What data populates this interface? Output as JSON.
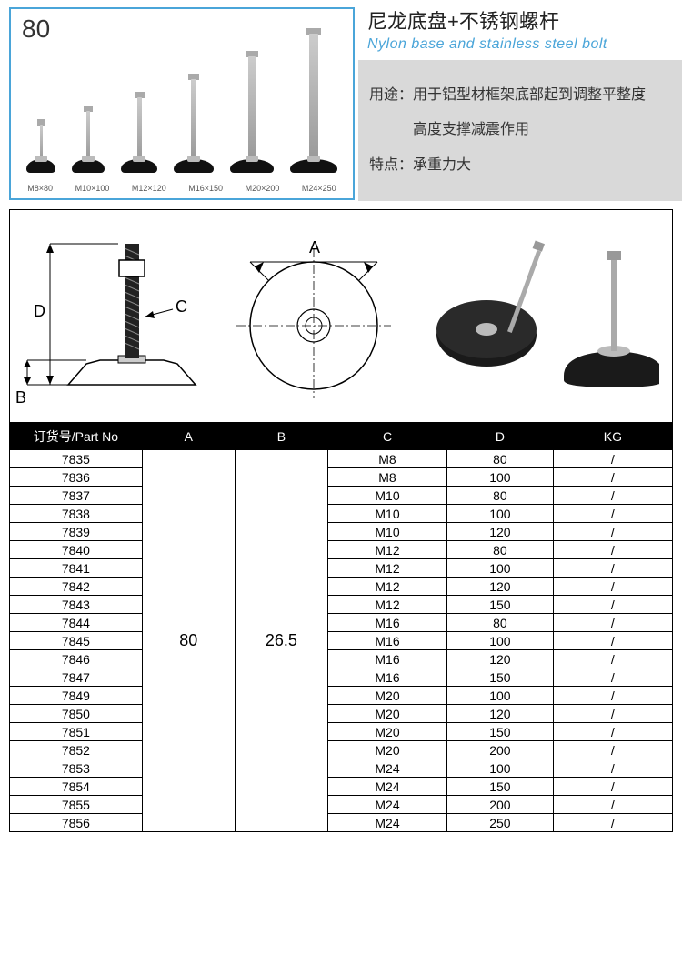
{
  "header": {
    "label80": "80",
    "title_cn": "尼龙底盘+不锈钢螺杆",
    "title_en": "Nylon base and stainless steel bolt",
    "usage_label": "用途：",
    "usage_text1": "用于铝型材框架底部起到调整平整度",
    "usage_text2": "高度支撑减震作用",
    "feature_label": "特点：",
    "feature_text": "承重力大",
    "foot_sizes": [
      "M8×80",
      "M10×100",
      "M12×120",
      "M16×150",
      "M20×200",
      "M24×250"
    ],
    "bolt_heights": [
      40,
      55,
      70,
      90,
      115,
      140
    ],
    "bolt_widths": [
      3,
      4,
      5,
      6,
      8,
      10
    ],
    "base_widths": [
      32,
      36,
      40,
      44,
      48,
      52
    ]
  },
  "diagram": {
    "label_A": "A",
    "label_B": "B",
    "label_C": "C",
    "label_D": "D"
  },
  "table": {
    "headers": [
      "订货号/Part No",
      "A",
      "B",
      "C",
      "D",
      "KG"
    ],
    "col_widths": [
      "20%",
      "14%",
      "14%",
      "18%",
      "16%",
      "18%"
    ],
    "merged_A": "80",
    "merged_B": "26.5",
    "rows": [
      {
        "pn": "7835",
        "c": "M8",
        "d": "80",
        "kg": "/"
      },
      {
        "pn": "7836",
        "c": "M8",
        "d": "100",
        "kg": "/"
      },
      {
        "pn": "7837",
        "c": "M10",
        "d": "80",
        "kg": "/"
      },
      {
        "pn": "7838",
        "c": "M10",
        "d": "100",
        "kg": "/"
      },
      {
        "pn": "7839",
        "c": "M10",
        "d": "120",
        "kg": "/"
      },
      {
        "pn": "7840",
        "c": "M12",
        "d": "80",
        "kg": "/"
      },
      {
        "pn": "7841",
        "c": "M12",
        "d": "100",
        "kg": "/"
      },
      {
        "pn": "7842",
        "c": "M12",
        "d": "120",
        "kg": "/"
      },
      {
        "pn": "7843",
        "c": "M12",
        "d": "150",
        "kg": "/"
      },
      {
        "pn": "7844",
        "c": "M16",
        "d": "80",
        "kg": "/"
      },
      {
        "pn": "7845",
        "c": "M16",
        "d": "100",
        "kg": "/"
      },
      {
        "pn": "7846",
        "c": "M16",
        "d": "120",
        "kg": "/"
      },
      {
        "pn": "7847",
        "c": "M16",
        "d": "150",
        "kg": "/"
      },
      {
        "pn": "7849",
        "c": "M20",
        "d": "100",
        "kg": "/"
      },
      {
        "pn": "7850",
        "c": "M20",
        "d": "120",
        "kg": "/"
      },
      {
        "pn": "7851",
        "c": "M20",
        "d": "150",
        "kg": "/"
      },
      {
        "pn": "7852",
        "c": "M20",
        "d": "200",
        "kg": "/"
      },
      {
        "pn": "7853",
        "c": "M24",
        "d": "100",
        "kg": "/"
      },
      {
        "pn": "7854",
        "c": "M24",
        "d": "150",
        "kg": "/"
      },
      {
        "pn": "7855",
        "c": "M24",
        "d": "200",
        "kg": "/"
      },
      {
        "pn": "7856",
        "c": "M24",
        "d": "250",
        "kg": "/"
      }
    ]
  }
}
